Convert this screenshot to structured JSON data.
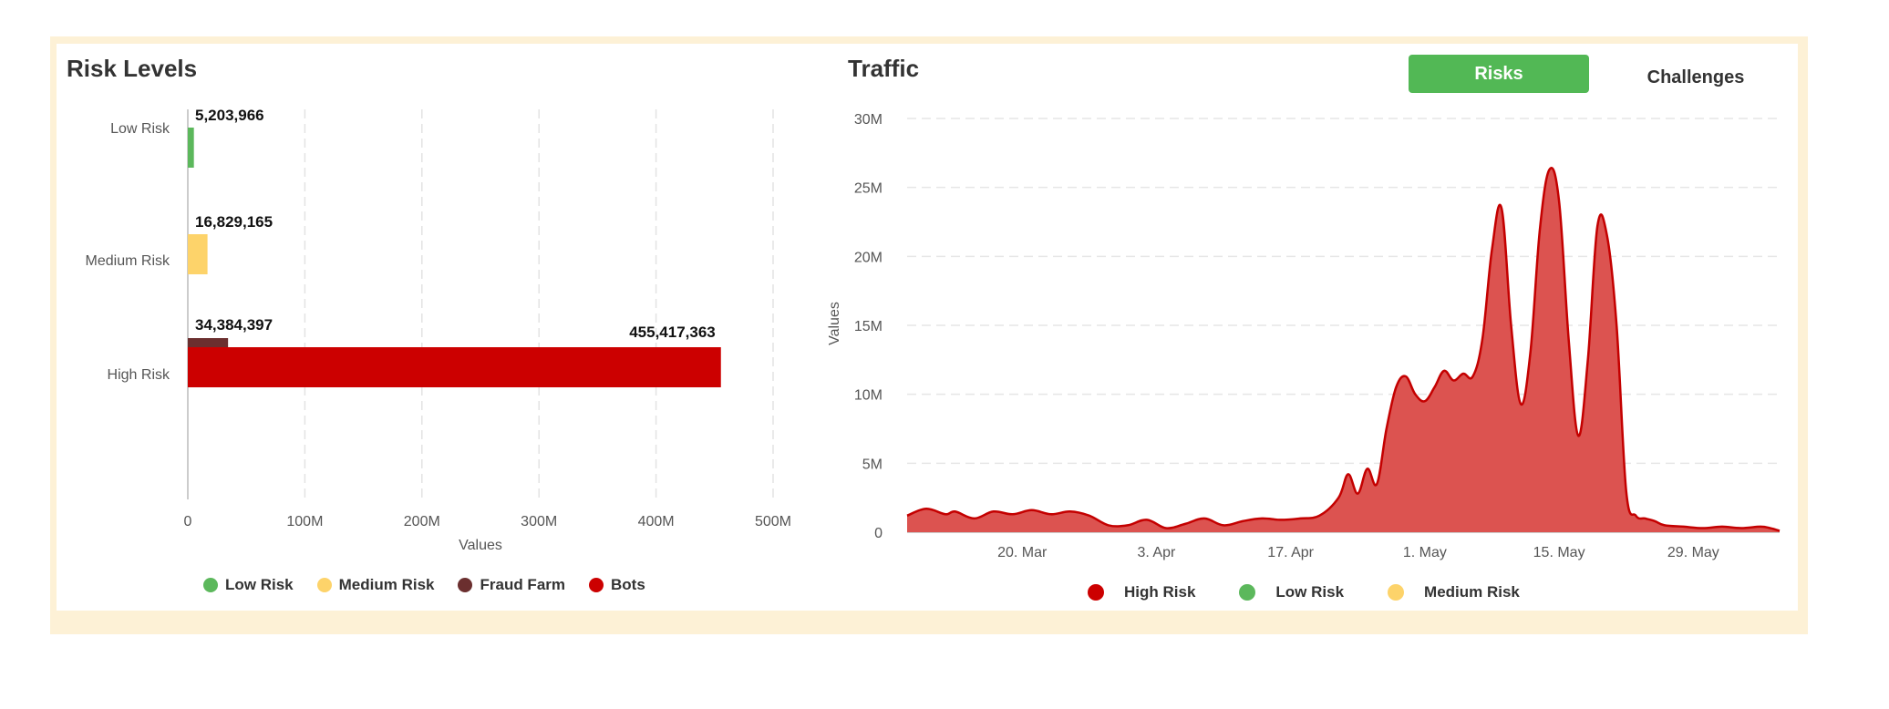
{
  "risk_panel": {
    "title": "Risk Levels"
  },
  "traffic_panel": {
    "title": "Traffic",
    "buttons": {
      "risks": "Risks",
      "challenges": "Challenges"
    }
  },
  "colors": {
    "low": "#5cb85c",
    "medium": "#fdd36a",
    "fraud": "#6b2f2f",
    "bots": "#cc0000",
    "area_fill": "#dc5350",
    "area_line": "#c40000",
    "active_button": "#52b855"
  },
  "chart_data": [
    {
      "type": "bar",
      "orientation": "horizontal",
      "title": "Risk Levels",
      "categories": [
        "Low Risk",
        "Medium Risk",
        "High Risk"
      ],
      "series": [
        {
          "name": "Low Risk",
          "color": "#5cb85c",
          "values": [
            5203966,
            null,
            null
          ],
          "labels": [
            "5,203,966",
            "",
            ""
          ]
        },
        {
          "name": "Medium Risk",
          "color": "#fdd36a",
          "values": [
            null,
            16829165,
            null
          ],
          "labels": [
            "",
            "16,829,165",
            ""
          ]
        },
        {
          "name": "Fraud Farm",
          "color": "#6b2f2f",
          "values": [
            null,
            null,
            34384397
          ],
          "labels": [
            "",
            "",
            "34,384,397"
          ]
        },
        {
          "name": "Bots",
          "color": "#cc0000",
          "values": [
            null,
            null,
            455417363
          ],
          "labels": [
            "",
            "",
            "455,417,363"
          ]
        }
      ],
      "xlabel": "Values",
      "xlim": [
        0,
        500000000
      ],
      "xticks": [
        0,
        100000000,
        200000000,
        300000000,
        400000000,
        500000000
      ],
      "xtick_labels": [
        "0",
        "100M",
        "200M",
        "300M",
        "400M",
        "500M"
      ],
      "grid": "vertical dashed",
      "legend": "bottom"
    },
    {
      "type": "area",
      "title": "Traffic",
      "ylabel": "Values",
      "ylim": [
        0,
        30000000
      ],
      "yticks": [
        0,
        5000000,
        10000000,
        15000000,
        20000000,
        25000000,
        30000000
      ],
      "ytick_labels": [
        "0",
        "5M",
        "10M",
        "15M",
        "20M",
        "25M",
        "30M"
      ],
      "xlim": [
        "2024-03-08",
        "2024-06-07"
      ],
      "xticks": [
        "2024-03-20",
        "2024-04-03",
        "2024-04-17",
        "2024-05-01",
        "2024-05-15",
        "2024-05-29"
      ],
      "xtick_labels": [
        "20. Mar",
        "3. Apr",
        "17. Apr",
        "1. May",
        "15. May",
        "29. May"
      ],
      "grid": "horizontal dashed",
      "legend": "bottom",
      "series": [
        {
          "name": "High Risk",
          "color": "#cc0000",
          "x": [
            "2024-03-08",
            "2024-03-10",
            "2024-03-12",
            "2024-03-13",
            "2024-03-15",
            "2024-03-17",
            "2024-03-19",
            "2024-03-21",
            "2024-03-23",
            "2024-03-25",
            "2024-03-27",
            "2024-03-29",
            "2024-03-31",
            "2024-04-02",
            "2024-04-04",
            "2024-04-06",
            "2024-04-08",
            "2024-04-10",
            "2024-04-12",
            "2024-04-14",
            "2024-04-16",
            "2024-04-18",
            "2024-04-20",
            "2024-04-22",
            "2024-04-23",
            "2024-04-24",
            "2024-04-25",
            "2024-04-26",
            "2024-04-27",
            "2024-04-28",
            "2024-04-29",
            "2024-04-30",
            "2024-05-01",
            "2024-05-02",
            "2024-05-03",
            "2024-05-04",
            "2024-05-05",
            "2024-05-06",
            "2024-05-07",
            "2024-05-08",
            "2024-05-09",
            "2024-05-10",
            "2024-05-11",
            "2024-05-12",
            "2024-05-13",
            "2024-05-14",
            "2024-05-15",
            "2024-05-16",
            "2024-05-17",
            "2024-05-18",
            "2024-05-19",
            "2024-05-20",
            "2024-05-21",
            "2024-05-22",
            "2024-05-23",
            "2024-05-24",
            "2024-05-25",
            "2024-05-26",
            "2024-05-28",
            "2024-05-30",
            "2024-06-01",
            "2024-06-03",
            "2024-06-05",
            "2024-06-06",
            "2024-06-07"
          ],
          "y": [
            1200000,
            1700000,
            1300000,
            1500000,
            1000000,
            1500000,
            1300000,
            1600000,
            1300000,
            1500000,
            1200000,
            500000,
            500000,
            900000,
            300000,
            600000,
            1000000,
            500000,
            800000,
            1000000,
            900000,
            1000000,
            1200000,
            2500000,
            4200000,
            2800000,
            4600000,
            3500000,
            7500000,
            10500000,
            11300000,
            10000000,
            9500000,
            10500000,
            11700000,
            11000000,
            11500000,
            11300000,
            14000000,
            20500000,
            23500000,
            15000000,
            9300000,
            13000000,
            22000000,
            26300000,
            24000000,
            14000000,
            7000000,
            12500000,
            22200000,
            21500000,
            15000000,
            3000000,
            1200000,
            1000000,
            800000,
            500000,
            400000,
            300000,
            400000,
            300000,
            400000,
            300000,
            100000
          ]
        },
        {
          "name": "Low Risk",
          "color": "#5cb85c"
        },
        {
          "name": "Medium Risk",
          "color": "#fdd36a"
        }
      ]
    }
  ]
}
